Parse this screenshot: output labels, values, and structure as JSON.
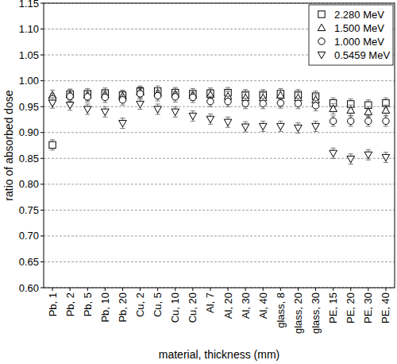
{
  "chart_data": {
    "type": "scatter",
    "x_label": "material, thickness (mm)",
    "y_label": "ratio of absorbed dose",
    "categories": [
      "Pb, 1",
      "Pb, 2",
      "Pb, 5",
      "Pb, 10",
      "Pb, 20",
      "Cu, 2",
      "Cu, 5",
      "Cu, 10",
      "Cu, 20",
      "Al, 7",
      "Al, 20",
      "Al, 30",
      "Al, 40",
      "glass, 8",
      "glass, 20",
      "glass, 30",
      "PE, 15",
      "PE, 20",
      "PE, 30",
      "PE, 40"
    ],
    "series": [
      {
        "name": "2.280 MeV",
        "color": "#000000",
        "marker": "square",
        "values": [
          0.876,
          0.974,
          0.975,
          0.976,
          0.972,
          0.98,
          0.98,
          0.977,
          0.975,
          0.976,
          0.977,
          0.973,
          0.973,
          0.975,
          0.973,
          0.97,
          0.957,
          0.955,
          0.953,
          0.957
        ],
        "errors": [
          0.01,
          0.01,
          0.01,
          0.01,
          0.01,
          0.01,
          0.01,
          0.01,
          0.01,
          0.01,
          0.01,
          0.01,
          0.01,
          0.01,
          0.01,
          0.01,
          0.01,
          0.01,
          0.01,
          0.01
        ]
      },
      {
        "name": "1.500 MeV",
        "color": "#000000",
        "marker": "triangle-up",
        "values": [
          0.972,
          0.973,
          0.972,
          0.973,
          0.97,
          0.978,
          0.976,
          0.974,
          0.972,
          0.973,
          0.97,
          0.967,
          0.967,
          0.972,
          0.967,
          0.963,
          0.946,
          0.943,
          0.94,
          0.943
        ],
        "errors": [
          0.01,
          0.01,
          0.01,
          0.01,
          0.01,
          0.01,
          0.01,
          0.01,
          0.01,
          0.01,
          0.01,
          0.01,
          0.01,
          0.01,
          0.01,
          0.01,
          0.01,
          0.01,
          0.01,
          0.01
        ]
      },
      {
        "name": "1.000 MeV",
        "color": "#000000",
        "marker": "circle",
        "values": [
          0.965,
          0.97,
          0.969,
          0.968,
          0.963,
          0.975,
          0.971,
          0.969,
          0.968,
          0.96,
          0.96,
          0.956,
          0.956,
          0.957,
          0.956,
          0.952,
          0.922,
          0.922,
          0.922,
          0.922
        ],
        "errors": [
          0.01,
          0.01,
          0.01,
          0.01,
          0.01,
          0.01,
          0.01,
          0.01,
          0.01,
          0.01,
          0.01,
          0.01,
          0.01,
          0.01,
          0.01,
          0.01,
          0.01,
          0.01,
          0.01,
          0.01
        ]
      },
      {
        "name": "0.5459 MeV",
        "color": "#000000",
        "marker": "triangle-down",
        "values": [
          0.957,
          0.953,
          0.945,
          0.94,
          0.918,
          0.955,
          0.945,
          0.94,
          0.932,
          0.926,
          0.92,
          0.911,
          0.912,
          0.912,
          0.909,
          0.912,
          0.86,
          0.849,
          0.857,
          0.852
        ],
        "errors": [
          0.01,
          0.01,
          0.01,
          0.01,
          0.01,
          0.01,
          0.01,
          0.01,
          0.01,
          0.01,
          0.01,
          0.01,
          0.01,
          0.01,
          0.01,
          0.01,
          0.01,
          0.01,
          0.01,
          0.01
        ]
      }
    ],
    "ylim": [
      0.6,
      1.15
    ],
    "yticks": [
      {
        "value": 0.6,
        "label": "0.60"
      },
      {
        "value": 0.65,
        "label": "0.65"
      },
      {
        "value": 0.7,
        "label": "0.70"
      },
      {
        "value": 0.75,
        "label": "0.75"
      },
      {
        "value": 0.8,
        "label": "0.80"
      },
      {
        "value": 0.85,
        "label": "0.85"
      },
      {
        "value": 0.9,
        "label": "0.90"
      },
      {
        "value": 0.95,
        "label": "0.95"
      },
      {
        "value": 1.0,
        "label": "1.00"
      },
      {
        "value": 1.05,
        "label": "1.05"
      },
      {
        "value": 1.1,
        "label": "1.10"
      },
      {
        "value": 1.15,
        "label": "1.15"
      }
    ],
    "grid": true,
    "legend": "top-right"
  }
}
